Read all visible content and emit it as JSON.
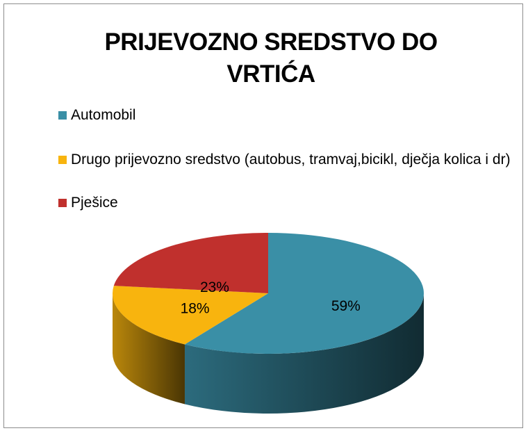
{
  "chart_data": {
    "type": "pie3d",
    "title": "PRIJEVOZNO SREDSTVO DO VRTIĆA",
    "categories": [
      "Automobil",
      "Drugo prijevozno sredstvo (autobus, tramvaj,bicikl, dječja kolica i dr)",
      "Pješice"
    ],
    "values": [
      59,
      18,
      23
    ],
    "value_labels": [
      "59%",
      "18%",
      "23%"
    ],
    "colors": [
      "#3a8fa6",
      "#f8b40e",
      "#c0302d"
    ],
    "legend": "top-left"
  }
}
